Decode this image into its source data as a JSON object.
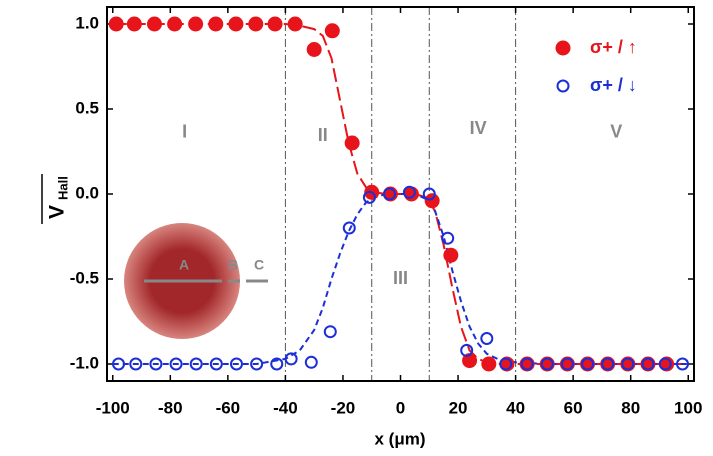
{
  "chart_data": {
    "type": "scatter",
    "x_label": "x (μm)",
    "y_label": "V",
    "y_label_sub": "Hall",
    "xlim": [
      -102,
      102
    ],
    "ylim": [
      -1.1,
      1.1
    ],
    "xticks": [
      -100,
      -80,
      -60,
      -40,
      -20,
      0,
      20,
      40,
      60,
      80,
      100
    ],
    "yticks": [
      {
        "value": 1,
        "label": "1.0"
      },
      {
        "value": 0.5,
        "label": "0.5"
      },
      {
        "value": 0,
        "label": "0.0"
      },
      {
        "value": -0.5,
        "label": "-0.5"
      },
      {
        "value": -1,
        "label": "-1.0"
      }
    ],
    "legend": "upper right",
    "region_boundaries": [
      -40,
      -10,
      10,
      40
    ],
    "region_labels": [
      "I",
      "II",
      "III",
      "IV",
      "V"
    ],
    "inset_labels": [
      "A",
      "B",
      "C"
    ],
    "series": [
      {
        "name": "σ+ / ↑",
        "color": "#e8141b",
        "marker": "filled",
        "x": [
          -98.8,
          -92.5,
          -85.5,
          -78.5,
          -71.2,
          -64.2,
          -57.2,
          -50.3,
          -43.6,
          -36.6,
          -30,
          -23.7,
          -16.8,
          -10,
          -3.5,
          3.8,
          11,
          17.5,
          24,
          30.7,
          37,
          44,
          51,
          58,
          65,
          72,
          79,
          86,
          92.5
        ],
        "values": [
          1,
          1,
          1,
          1,
          1,
          1,
          1,
          1,
          1,
          1,
          0.85,
          0.96,
          0.3,
          0.01,
          0,
          0,
          -0.04,
          -0.36,
          -0.98,
          -1,
          -1,
          -1,
          -1,
          -1,
          -1,
          -1,
          -1,
          -1,
          -1
        ]
      },
      {
        "name": "σ+ / ↓",
        "color": "#1c2fd6",
        "marker": "open",
        "x": [
          -98,
          -92,
          -85,
          -78,
          -71,
          -64,
          -57,
          -50,
          -43,
          -38,
          -31,
          -24.4,
          -17.8,
          -10.8,
          -3.8,
          3.1,
          10,
          16.4,
          23,
          30,
          36.6,
          44,
          51,
          58,
          65,
          72,
          79,
          86,
          92,
          98
        ],
        "values": [
          -1,
          -1,
          -1,
          -1,
          -1,
          -1,
          -1,
          -1,
          -1,
          -0.97,
          -0.99,
          -0.81,
          -0.2,
          -0.02,
          0,
          0.01,
          0,
          -0.26,
          -0.92,
          -0.85,
          -1,
          -1,
          -1,
          -1,
          -1,
          -1,
          -1,
          -1,
          -1,
          -1
        ]
      }
    ],
    "fits": [
      {
        "color": "#e8141b",
        "x": [
          -100,
          -50,
          -40,
          -35,
          -30,
          -27,
          -24,
          -21,
          -18,
          -15,
          -12,
          -9,
          -5,
          0,
          5,
          9,
          12,
          15,
          18,
          21,
          24,
          27,
          30,
          35,
          40,
          50,
          100
        ],
        "values": [
          1,
          1,
          1,
          0.99,
          0.97,
          0.93,
          0.8,
          0.55,
          0.3,
          0.12,
          0.04,
          0.01,
          0,
          0,
          0,
          -0.02,
          -0.1,
          -0.3,
          -0.55,
          -0.78,
          -0.92,
          -0.97,
          -0.99,
          -1,
          -1,
          -1,
          -1
        ]
      },
      {
        "color": "#1c2fd6",
        "x": [
          -100,
          -50,
          -40,
          -35,
          -30,
          -27,
          -24,
          -21,
          -18,
          -15,
          -12,
          -9,
          -5,
          0,
          5,
          9,
          12,
          15,
          18,
          21,
          24,
          27,
          30,
          35,
          40,
          50,
          100
        ],
        "values": [
          -1,
          -1,
          -0.97,
          -0.92,
          -0.8,
          -0.67,
          -0.5,
          -0.35,
          -0.22,
          -0.12,
          -0.05,
          -0.02,
          0,
          0,
          0,
          -0.03,
          -0.1,
          -0.25,
          -0.45,
          -0.63,
          -0.78,
          -0.88,
          -0.94,
          -0.98,
          -0.99,
          -1,
          -1
        ]
      }
    ]
  }
}
